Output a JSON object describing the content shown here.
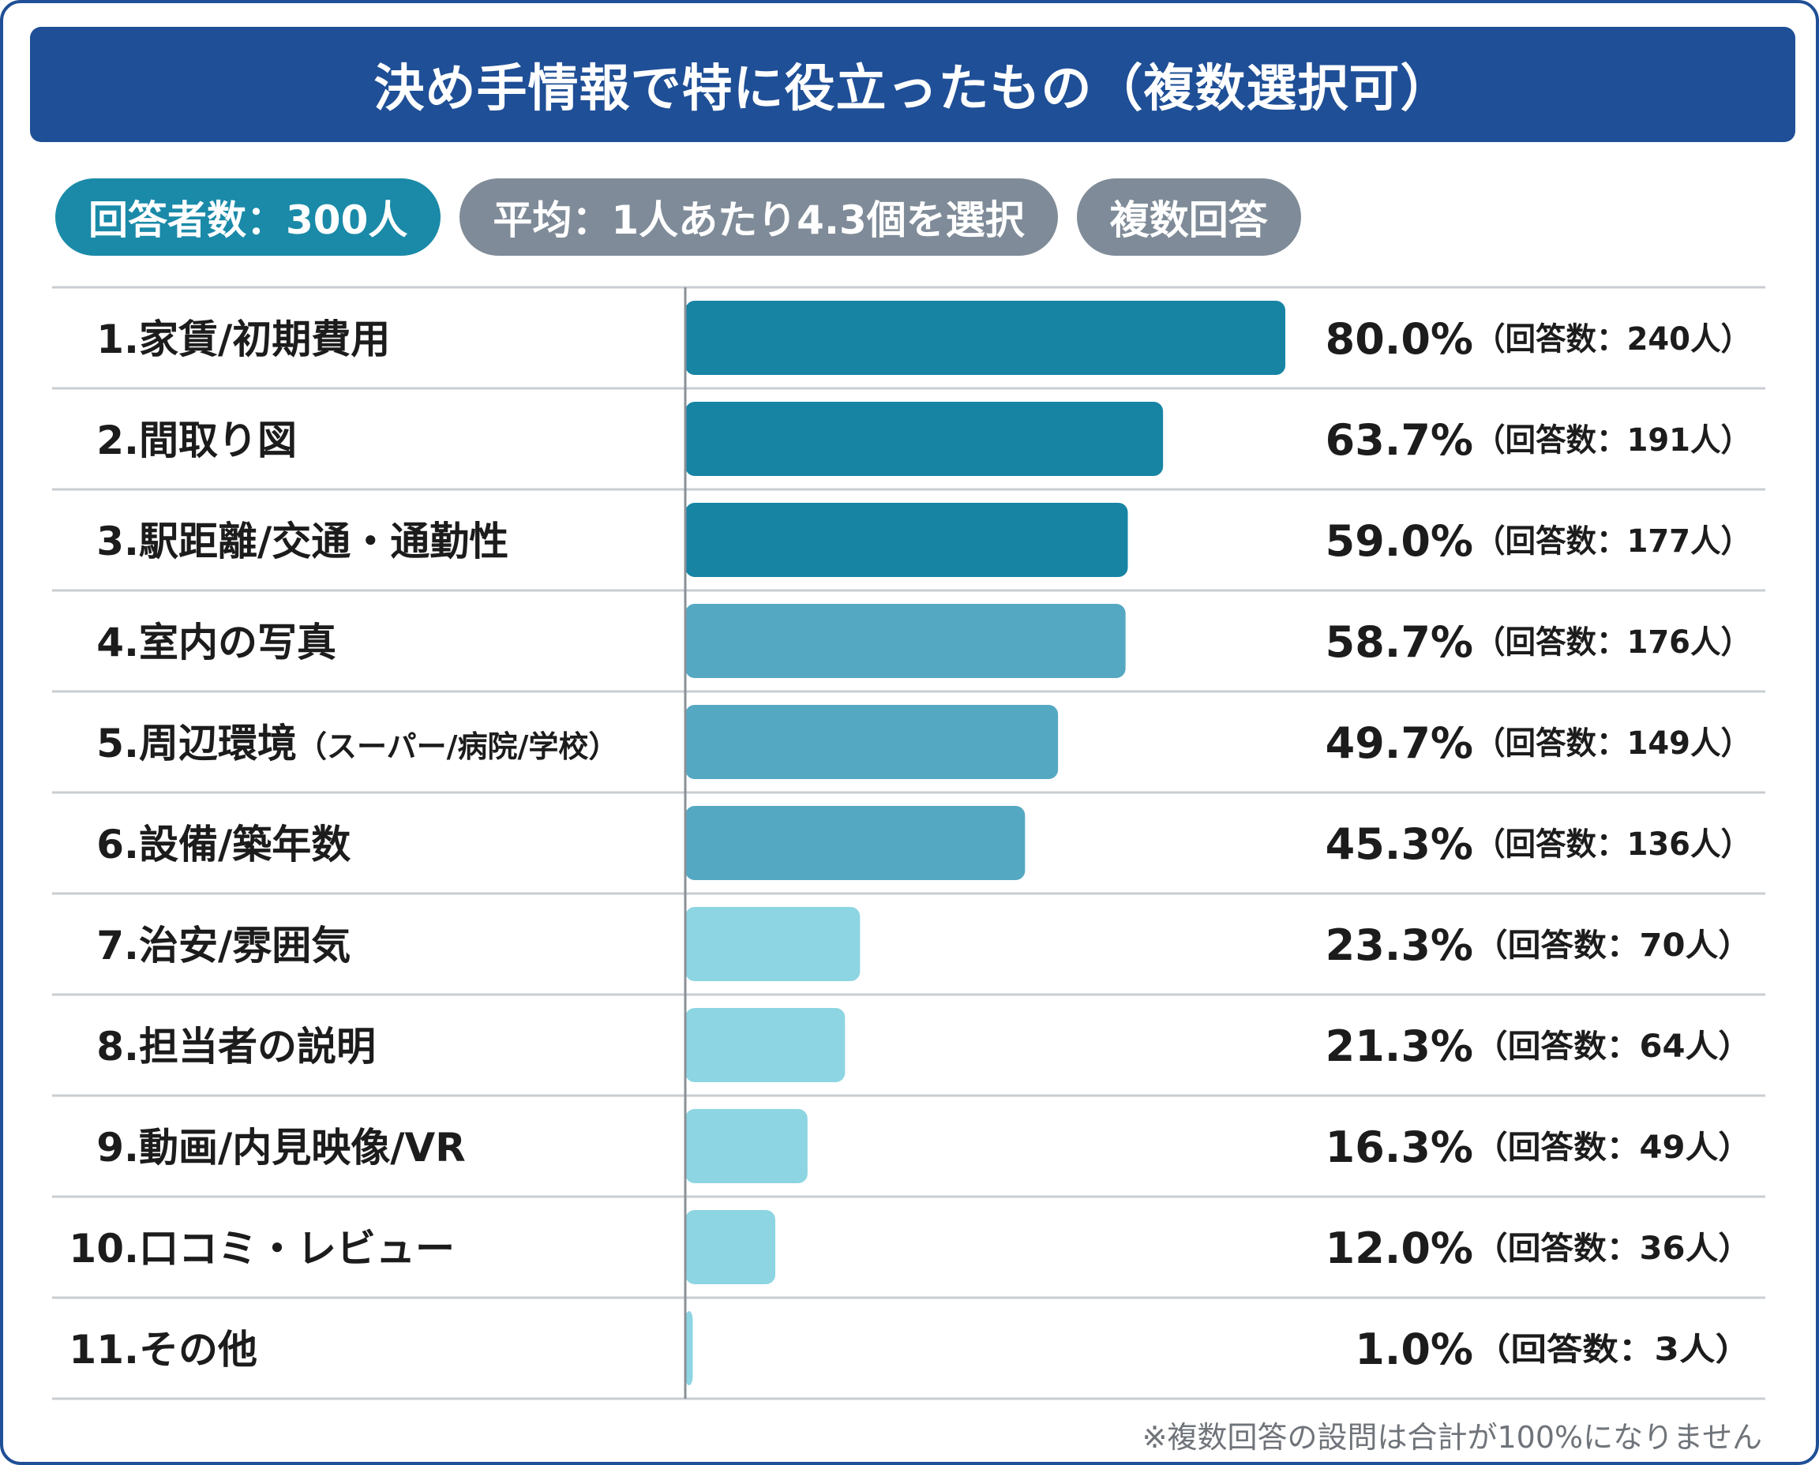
{
  "title": "決め手情報で特に役立ったもの（複数選択可）",
  "chips": {
    "respondents": "回答者数：300人",
    "average": "平均：1人あたり4.3個を選択",
    "multi": "複数回答"
  },
  "footnote": "※複数回答の設問は合計が100%になりません",
  "colors": {
    "title_bg": "#1f4f96",
    "chip_primary": "#1a8aa8",
    "chip_gray": "#7f8b98",
    "bar_dark": "#1784a4",
    "bar_mid": "#55a8c2",
    "bar_light": "#8dd5e2"
  },
  "chart_data": {
    "type": "bar",
    "orientation": "horizontal",
    "title": "決め手情報で特に役立ったもの（複数選択可）",
    "xlim": [
      0,
      100
    ],
    "unit": "%",
    "rows": [
      {
        "rank": "1.",
        "label": "家賃/初期費用",
        "sub": "",
        "value": 80.0,
        "value_label": "80.0%",
        "count_label": "（回答数：240人）",
        "tone": "dark"
      },
      {
        "rank": "2.",
        "label": "間取り図",
        "sub": "",
        "value": 63.7,
        "value_label": "63.7%",
        "count_label": "（回答数：191人）",
        "tone": "dark"
      },
      {
        "rank": "3.",
        "label": "駅距離/交通・通勤性",
        "sub": "",
        "value": 59.0,
        "value_label": "59.0%",
        "count_label": "（回答数：177人）",
        "tone": "dark"
      },
      {
        "rank": "4.",
        "label": "室内の写真",
        "sub": "",
        "value": 58.7,
        "value_label": "58.7%",
        "count_label": "（回答数：176人）",
        "tone": "mid"
      },
      {
        "rank": "5.",
        "label": "周辺環境",
        "sub": "（スーパー/病院/学校）",
        "value": 49.7,
        "value_label": "49.7%",
        "count_label": "（回答数：149人）",
        "tone": "mid"
      },
      {
        "rank": "6.",
        "label": "設備/築年数",
        "sub": "",
        "value": 45.3,
        "value_label": "45.3%",
        "count_label": "（回答数：136人）",
        "tone": "mid"
      },
      {
        "rank": "7.",
        "label": "治安/雰囲気",
        "sub": "",
        "value": 23.3,
        "value_label": "23.3%",
        "count_label": "（回答数：70人）",
        "tone": "light"
      },
      {
        "rank": "8.",
        "label": "担当者の説明",
        "sub": "",
        "value": 21.3,
        "value_label": "21.3%",
        "count_label": "（回答数：64人）",
        "tone": "light"
      },
      {
        "rank": "9.",
        "label": "動画/内見映像/VR",
        "sub": "",
        "value": 16.3,
        "value_label": "16.3%",
        "count_label": "（回答数：49人）",
        "tone": "light"
      },
      {
        "rank": "10.",
        "label": "口コミ・レビュー",
        "sub": "",
        "value": 12.0,
        "value_label": "12.0%",
        "count_label": "（回答数：36人）",
        "tone": "light"
      },
      {
        "rank": "11.",
        "label": "その他",
        "sub": "",
        "value": 1.0,
        "value_label": "1.0%",
        "count_label": "（回答数：3人）",
        "tone": "light"
      }
    ]
  }
}
